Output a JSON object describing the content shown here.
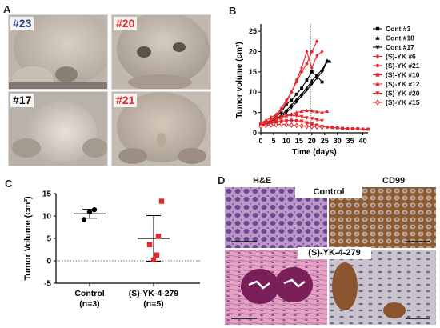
{
  "figure": {
    "panels": {
      "a": {
        "letter": "A"
      },
      "b": {
        "letter": "B"
      },
      "c": {
        "letter": "C"
      },
      "d": {
        "letter": "D"
      }
    }
  },
  "panel_a": {
    "mice": [
      {
        "label": "#23",
        "color": "#2e3f8f"
      },
      {
        "label": "#20",
        "color": "#e8262a"
      },
      {
        "label": "#17",
        "color": "#111111"
      },
      {
        "label": "#21",
        "color": "#e8262a"
      }
    ]
  },
  "panel_d": {
    "col_left_label": "H&E",
    "col_right_label": "CD99",
    "row_top_label": "Control",
    "row_bottom_label": "(S)-YK-4-279"
  },
  "chart_data": [
    {
      "id": "B",
      "type": "line",
      "title": "",
      "xlabel": "Time (days)",
      "ylabel": "Tumor volume (cm³)",
      "xlim": [
        0,
        42
      ],
      "ylim": [
        0,
        26
      ],
      "xticks": [
        "0",
        "5",
        "10",
        "15",
        "20",
        "25",
        "30",
        "35",
        "40"
      ],
      "yticks": [
        "0",
        "5",
        "10",
        "15",
        "20",
        "25"
      ],
      "vline_x": 19.5,
      "legend_position": "right",
      "series": [
        {
          "name": "Cont #3",
          "color": "#000000",
          "marker": "square",
          "x": [
            0,
            2,
            4,
            6,
            8,
            10,
            12,
            14,
            16,
            18,
            20,
            22,
            24
          ],
          "y": [
            2.2,
            2.5,
            3,
            4,
            5,
            7,
            8,
            9.5,
            11,
            13,
            15,
            14,
            12.5
          ]
        },
        {
          "name": "Cont #18",
          "color": "#000000",
          "marker": "triangle-up",
          "x": [
            0,
            2,
            4,
            6,
            8,
            10,
            12,
            14,
            16,
            18,
            20,
            22,
            24,
            26,
            27
          ],
          "y": [
            2,
            2.2,
            2.7,
            3.4,
            4.3,
            5.5,
            6.8,
            8.2,
            9.5,
            11,
            12.8,
            14.2,
            15.5,
            17.8,
            17.6
          ]
        },
        {
          "name": "Cont #17",
          "color": "#000000",
          "marker": "triangle-down",
          "x": [
            0,
            2,
            4,
            6,
            8,
            10,
            12,
            14,
            16,
            18,
            20,
            22,
            24,
            26
          ],
          "y": [
            1.8,
            2,
            2.4,
            3,
            3.9,
            5,
            6.2,
            7.6,
            9,
            10.5,
            12,
            13.5,
            15,
            17.5
          ]
        },
        {
          "name": "(S)-YK #6",
          "color": "#e8262a",
          "marker": "diamond",
          "x": [
            0,
            2,
            4,
            6,
            8,
            10,
            12,
            14,
            16,
            18,
            20,
            22,
            24
          ],
          "y": [
            2.5,
            3,
            3.8,
            4.5,
            6,
            8,
            10,
            13,
            16,
            20,
            16,
            19,
            20
          ]
        },
        {
          "name": "(S)-YK #21",
          "color": "#e8262a",
          "marker": "circle",
          "x": [
            0,
            2,
            4,
            6,
            8,
            10,
            12,
            14,
            16,
            18,
            20,
            22
          ],
          "y": [
            2,
            2.5,
            3.2,
            4.2,
            5.5,
            7.5,
            10,
            12.5,
            15,
            17,
            20,
            22.5
          ]
        },
        {
          "name": "(S)-YK #10",
          "color": "#e8262a",
          "marker": "square",
          "x": [
            0,
            2,
            4,
            6,
            8,
            10,
            12,
            14,
            16,
            18,
            20,
            22,
            24,
            26,
            28,
            30,
            32,
            34,
            36,
            38,
            40,
            42
          ],
          "y": [
            1.8,
            2,
            2.3,
            2.6,
            2.9,
            3,
            3.1,
            3,
            2.9,
            2.5,
            2.2,
            1.9,
            1.6,
            1.4,
            1.3,
            1.2,
            1.1,
            1,
            1,
            1,
            0.9,
            0.9
          ]
        },
        {
          "name": "(S)-YK #12",
          "color": "#e8262a",
          "marker": "triangle-up",
          "x": [
            0,
            2,
            4,
            6,
            8,
            10,
            12,
            14,
            16,
            18,
            20,
            22,
            24,
            26
          ],
          "y": [
            2,
            2.3,
            2.7,
            3.2,
            3.7,
            4.2,
            4.6,
            5,
            5.3,
            5.5,
            5.4,
            5.2,
            5,
            5.3
          ]
        },
        {
          "name": "(S)-YK #20",
          "color": "#e8262a",
          "marker": "triangle-down",
          "x": [
            0,
            2,
            4,
            6,
            8,
            10,
            12,
            14,
            16,
            18,
            20,
            22,
            24
          ],
          "y": [
            2.2,
            2.6,
            3.1,
            3.5,
            3.9,
            4.2,
            4.3,
            4.2,
            4,
            3.7,
            3.5,
            3.2,
            3
          ]
        },
        {
          "name": "(S)-YK #15",
          "color": "#e8262a",
          "marker": "diamond-open",
          "x": [
            0,
            2,
            4,
            6,
            8,
            10,
            12,
            14,
            16,
            18,
            20,
            22,
            24
          ],
          "y": [
            1.6,
            1.8,
            1.9,
            2,
            2.1,
            2,
            1.9,
            1.8,
            1.7,
            1.6,
            1.5,
            1.5,
            1.4
          ]
        }
      ]
    },
    {
      "id": "C",
      "type": "scatter",
      "title": "",
      "ylabel": "Tumor Volume (cm³)",
      "ylim": [
        -5,
        15
      ],
      "yticks": [
        "-5",
        "0",
        "5",
        "10",
        "15"
      ],
      "zero_line": true,
      "groups": [
        {
          "label": "Control",
          "sublabel": "(n=3)",
          "color": "#000000",
          "values": [
            9.2,
            10.9,
            11.4
          ],
          "mean": 10.5,
          "sd": 1.0
        },
        {
          "label": "(S)-YK-4-279",
          "sublabel": "(n=5)",
          "color": "#e8262a",
          "values": [
            13.3,
            5.5,
            3.6,
            1.3,
            0.2
          ],
          "mean": 5.0,
          "sd": 5.1
        }
      ]
    }
  ]
}
